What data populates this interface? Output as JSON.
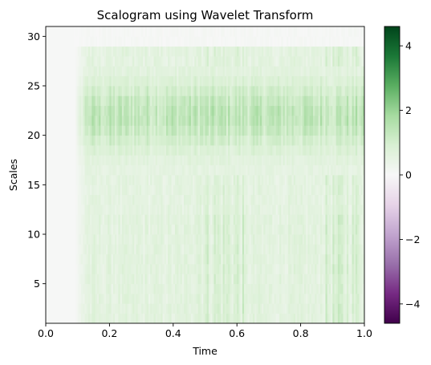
{
  "chart_data": {
    "type": "heatmap",
    "title": "Scalogram using Wavelet Transform",
    "xlabel": "Time",
    "ylabel": "Scales",
    "xlim": [
      0.0,
      1.0
    ],
    "ylim": [
      1,
      31
    ],
    "x_ticks": [
      0.0,
      0.2,
      0.4,
      0.6,
      0.8,
      1.0
    ],
    "x_tick_labels": [
      "0.0",
      "0.2",
      "0.4",
      "0.6",
      "0.8",
      "1.0"
    ],
    "y_ticks": [
      5,
      10,
      15,
      20,
      25,
      30
    ],
    "y_tick_labels": [
      "5",
      "10",
      "15",
      "20",
      "25",
      "30"
    ],
    "colormap": "PRGn",
    "colorbar": {
      "vmin": -4.6,
      "vmax": 4.6,
      "ticks": [
        -4,
        -2,
        0,
        2,
        4
      ],
      "tick_labels": [
        "−4",
        "−2",
        "0",
        "2",
        "4"
      ]
    },
    "signal_onset_time": 0.1,
    "value_range_observed": [
      0,
      2.2
    ],
    "grid": false
  }
}
